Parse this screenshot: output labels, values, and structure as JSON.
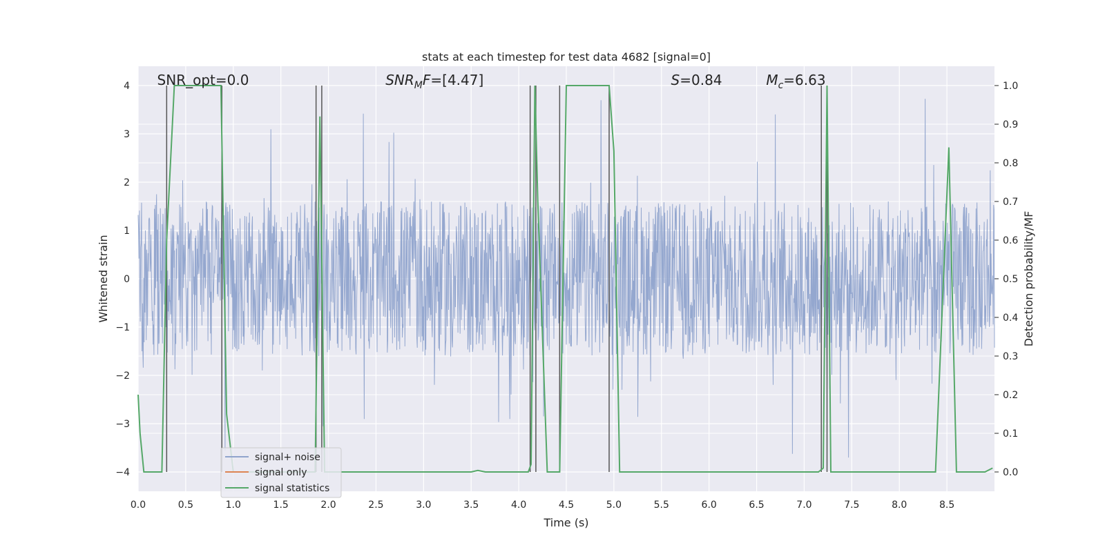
{
  "chart_data": {
    "type": "line",
    "title": "stats at each timestep for test data 4682 [signal=0]",
    "xlabel": "Time (s)",
    "ylabel": "Whitened strain",
    "y2label": "Detection probability/MF",
    "xlim": [
      0,
      9.0
    ],
    "ylim": [
      -4.4,
      4.4
    ],
    "y2lim": [
      -0.05,
      1.05
    ],
    "x_ticks": [
      0.0,
      0.5,
      1.0,
      1.5,
      2.0,
      2.5,
      3.0,
      3.5,
      4.0,
      4.5,
      5.0,
      5.5,
      6.0,
      6.5,
      7.0,
      7.5,
      8.0,
      8.5
    ],
    "x_tick_labels": [
      "0.0",
      "0.5",
      "1.0",
      "1.5",
      "2.0",
      "2.5",
      "3.0",
      "3.5",
      "4.0",
      "4.5",
      "5.0",
      "5.5",
      "6.0",
      "6.5",
      "7.0",
      "7.5",
      "8.0",
      "8.5"
    ],
    "y_ticks": [
      -4,
      -3,
      -2,
      -1,
      0,
      1,
      2,
      3,
      4
    ],
    "y_tick_labels": [
      "−4",
      "−3",
      "−2",
      "−1",
      "0",
      "1",
      "2",
      "3",
      "4"
    ],
    "y2_ticks": [
      0.0,
      0.1,
      0.2,
      0.3,
      0.4,
      0.5,
      0.6,
      0.7,
      0.8,
      0.9,
      1.0
    ],
    "y2_tick_labels": [
      "0.0",
      "0.1",
      "0.2",
      "0.3",
      "0.4",
      "0.5",
      "0.6",
      "0.7",
      "0.8",
      "0.9",
      "1.0"
    ],
    "grid": true,
    "legend_position": "lower-left",
    "annotations": [
      {
        "text": "SNR_opt=0.0",
        "x": 0.2,
        "y": 4.1
      },
      {
        "text": "SNR_MF=[4.47]",
        "x": 2.6,
        "y": 4.1
      },
      {
        "text": "S=0.84",
        "x": 5.6,
        "y": 4.1
      },
      {
        "text": "M_c=6.63",
        "x": 6.6,
        "y": 4.1
      }
    ],
    "series": [
      {
        "name": "signal+ noise",
        "color": "#8fa3cc",
        "noise": {
          "dt": 0.0045,
          "core_amplitude": 1.6,
          "peak_max": 4.0,
          "peak_min": -4.0
        }
      },
      {
        "name": "signal only",
        "color": "#dd8452",
        "values": []
      },
      {
        "name": "signal statistics",
        "color": "#55a868",
        "axis": "right",
        "x": [
          0.0,
          0.02,
          0.06,
          0.25,
          0.3,
          0.38,
          0.87,
          0.93,
          1.0,
          1.86,
          1.91,
          1.96,
          2.0,
          3.5,
          3.57,
          3.65,
          4.1,
          4.13,
          4.17,
          4.2,
          4.3,
          4.43,
          4.5,
          4.95,
          5.0,
          5.06,
          7.15,
          7.2,
          7.24,
          7.28,
          8.38,
          8.52,
          8.6,
          8.9,
          8.98
        ],
        "y": [
          0.2,
          0.1,
          0.0,
          0.0,
          0.6,
          1.0,
          1.0,
          0.15,
          0.0,
          0.0,
          0.92,
          0.0,
          0.0,
          0.0,
          0.004,
          0.0,
          0.0,
          0.02,
          1.0,
          0.7,
          0.0,
          0.0,
          1.0,
          1.0,
          0.83,
          0.0,
          0.0,
          0.01,
          1.0,
          0.0,
          0.0,
          0.84,
          0.0,
          0.0,
          0.01
        ]
      }
    ],
    "vertical_lines": [
      0.3,
      0.88,
      1.87,
      1.93,
      4.12,
      4.18,
      4.43,
      4.95,
      7.18,
      7.24
    ],
    "vertical_line_range": [
      -4.0,
      4.0
    ],
    "vertical_line_color": "#555555"
  }
}
